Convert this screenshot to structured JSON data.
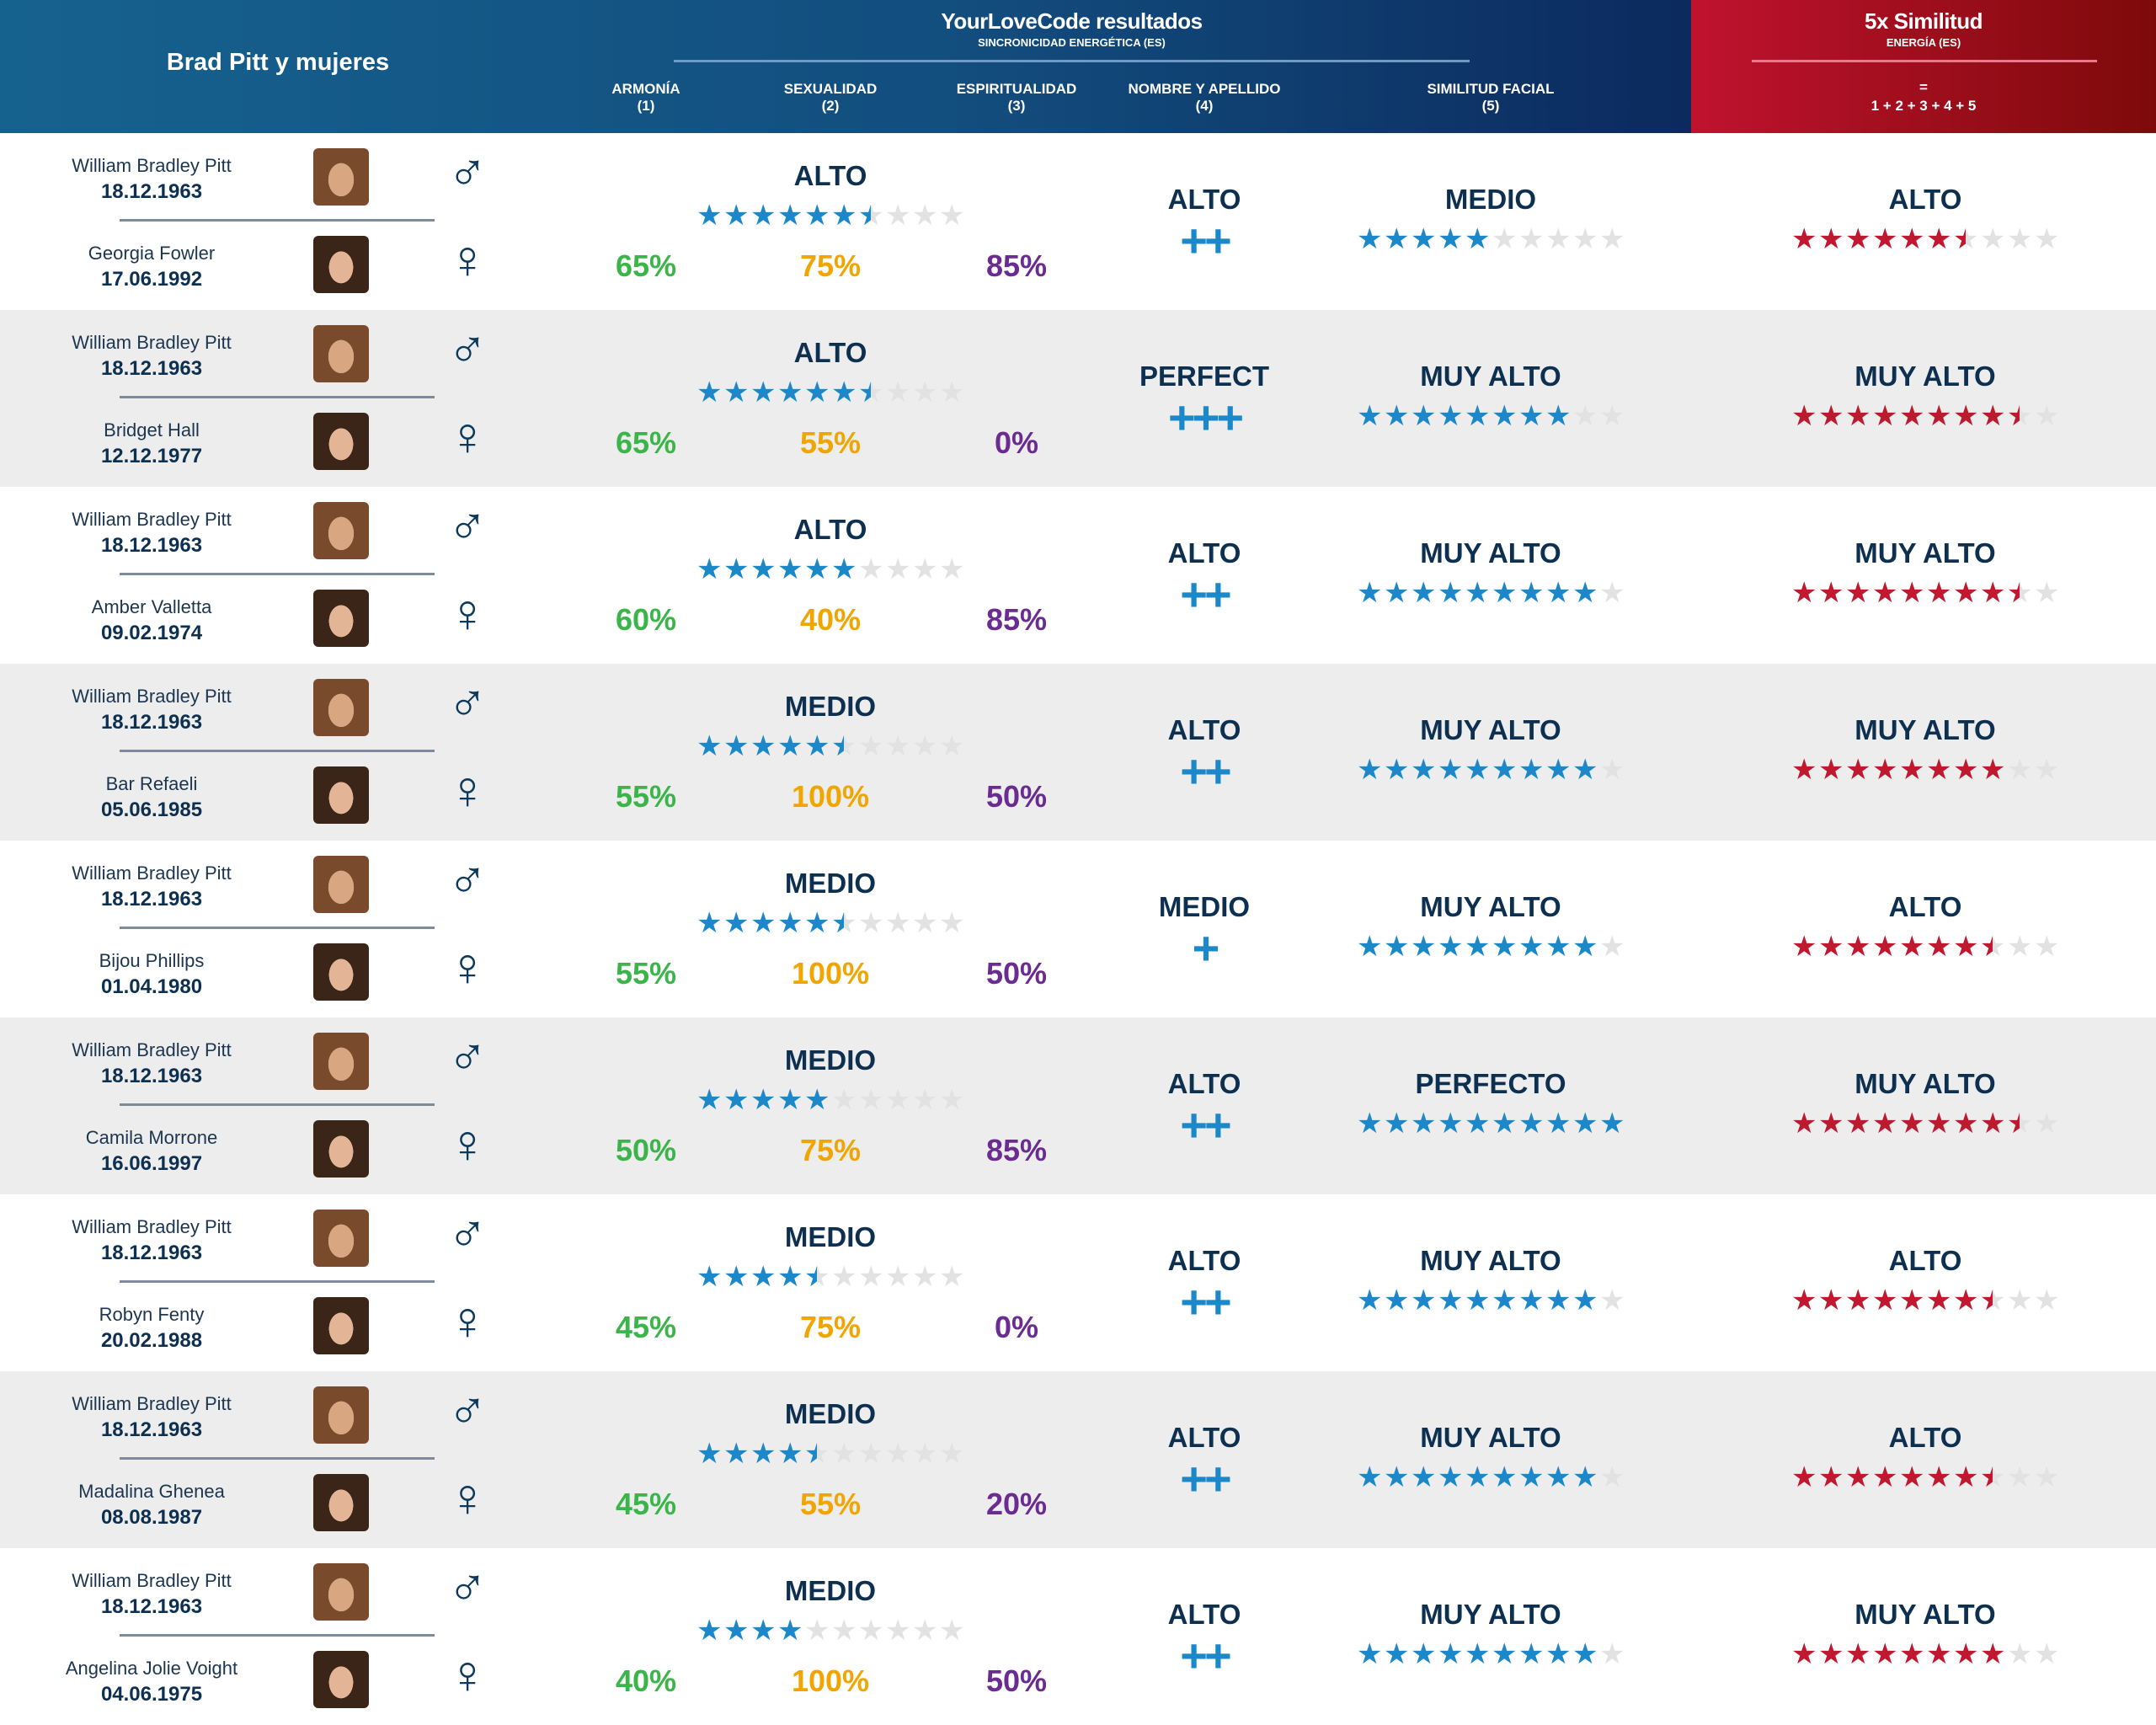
{
  "header": {
    "title": "Brad Pitt y mujeres",
    "main_title": "YourLoveCode resultados",
    "main_subtitle": "SINCRONICIDAD ENERGÉTICA (ES)",
    "columns": [
      {
        "label": "ARMONÍA",
        "num": "(1)"
      },
      {
        "label": "SEXUALIDAD",
        "num": "(2)"
      },
      {
        "label": "ESPIRITUALIDAD",
        "num": "(3)"
      },
      {
        "label": "NOMBRE Y APELLIDO",
        "num": "(4)"
      },
      {
        "label": "SIMILITUD FACIAL",
        "num": "(5)"
      }
    ],
    "total_title": "5x Similitud",
    "total_subtitle": "ENERGÍA (ES)",
    "total_eq": "=",
    "total_formula": "1 + 2 + 3 + 4 + 5"
  },
  "colors": {
    "armonia": "#3bb54a",
    "sexualidad": "#f0a500",
    "espiritualidad": "#6a2c91",
    "blue_star": "#1a88c9",
    "red_star": "#c0182f",
    "empty_star": "#e2e2e2"
  },
  "symbols": {
    "male": "♂",
    "female": "♀",
    "star": "★"
  },
  "rows": [
    {
      "man": "William Bradley Pitt",
      "man_date": "18.12.1963",
      "woman": "Georgia Fowler",
      "woman_date": "17.06.1992",
      "armonia": "65%",
      "sexualidad": "75%",
      "espiritualidad": "85%",
      "level": "ALTO",
      "level_stars": 6.5,
      "name_level": "ALTO",
      "name_plus": "++",
      "facial_level": "MEDIO",
      "facial_stars": 5,
      "total_level": "ALTO",
      "total_stars": 6.5
    },
    {
      "man": "William Bradley Pitt",
      "man_date": "18.12.1963",
      "woman": "Bridget Hall",
      "woman_date": "12.12.1977",
      "armonia": "65%",
      "sexualidad": "55%",
      "espiritualidad": "0%",
      "level": "ALTO",
      "level_stars": 6.5,
      "name_level": "PERFECT",
      "name_plus": "+++",
      "facial_level": "MUY ALTO",
      "facial_stars": 8,
      "total_level": "MUY ALTO",
      "total_stars": 8.5
    },
    {
      "man": "William Bradley Pitt",
      "man_date": "18.12.1963",
      "woman": "Amber Valletta",
      "woman_date": "09.02.1974",
      "armonia": "60%",
      "sexualidad": "40%",
      "espiritualidad": "85%",
      "level": "ALTO",
      "level_stars": 6,
      "name_level": "ALTO",
      "name_plus": "++",
      "facial_level": "MUY ALTO",
      "facial_stars": 9,
      "total_level": "MUY ALTO",
      "total_stars": 8.5
    },
    {
      "man": "William Bradley Pitt",
      "man_date": "18.12.1963",
      "woman": "Bar Refaeli",
      "woman_date": "05.06.1985",
      "armonia": "55%",
      "sexualidad": "100%",
      "espiritualidad": "50%",
      "level": "MEDIO",
      "level_stars": 5.5,
      "name_level": "ALTO",
      "name_plus": "++",
      "facial_level": "MUY ALTO",
      "facial_stars": 9,
      "total_level": "MUY ALTO",
      "total_stars": 8
    },
    {
      "man": "William Bradley Pitt",
      "man_date": "18.12.1963",
      "woman": "Bijou Phillips",
      "woman_date": "01.04.1980",
      "armonia": "55%",
      "sexualidad": "100%",
      "espiritualidad": "50%",
      "level": "MEDIO",
      "level_stars": 5.5,
      "name_level": "MEDIO",
      "name_plus": "+",
      "facial_level": "MUY ALTO",
      "facial_stars": 9,
      "total_level": "ALTO",
      "total_stars": 7.5
    },
    {
      "man": "William Bradley Pitt",
      "man_date": "18.12.1963",
      "woman": "Camila Morrone",
      "woman_date": "16.06.1997",
      "armonia": "50%",
      "sexualidad": "75%",
      "espiritualidad": "85%",
      "level": "MEDIO",
      "level_stars": 5,
      "name_level": "ALTO",
      "name_plus": "++",
      "facial_level": "PERFECTO",
      "facial_stars": 10,
      "total_level": "MUY ALTO",
      "total_stars": 8.5
    },
    {
      "man": "William Bradley Pitt",
      "man_date": "18.12.1963",
      "woman": "Robyn Fenty",
      "woman_date": "20.02.1988",
      "armonia": "45%",
      "sexualidad": "75%",
      "espiritualidad": "0%",
      "level": "MEDIO",
      "level_stars": 4.5,
      "name_level": "ALTO",
      "name_plus": "++",
      "facial_level": "MUY ALTO",
      "facial_stars": 9,
      "total_level": "ALTO",
      "total_stars": 7.5
    },
    {
      "man": "William Bradley Pitt",
      "man_date": "18.12.1963",
      "woman": "Madalina Ghenea",
      "woman_date": "08.08.1987",
      "armonia": "45%",
      "sexualidad": "55%",
      "espiritualidad": "20%",
      "level": "MEDIO",
      "level_stars": 4.5,
      "name_level": "ALTO",
      "name_plus": "++",
      "facial_level": "MUY ALTO",
      "facial_stars": 9,
      "total_level": "ALTO",
      "total_stars": 7.5
    },
    {
      "man": "William Bradley Pitt",
      "man_date": "18.12.1963",
      "woman": "Angelina Jolie Voight",
      "woman_date": "04.06.1975",
      "armonia": "40%",
      "sexualidad": "100%",
      "espiritualidad": "50%",
      "level": "MEDIO",
      "level_stars": 4,
      "name_level": "ALTO",
      "name_plus": "++",
      "facial_level": "MUY ALTO",
      "facial_stars": 9,
      "total_level": "MUY ALTO",
      "total_stars": 8
    }
  ]
}
